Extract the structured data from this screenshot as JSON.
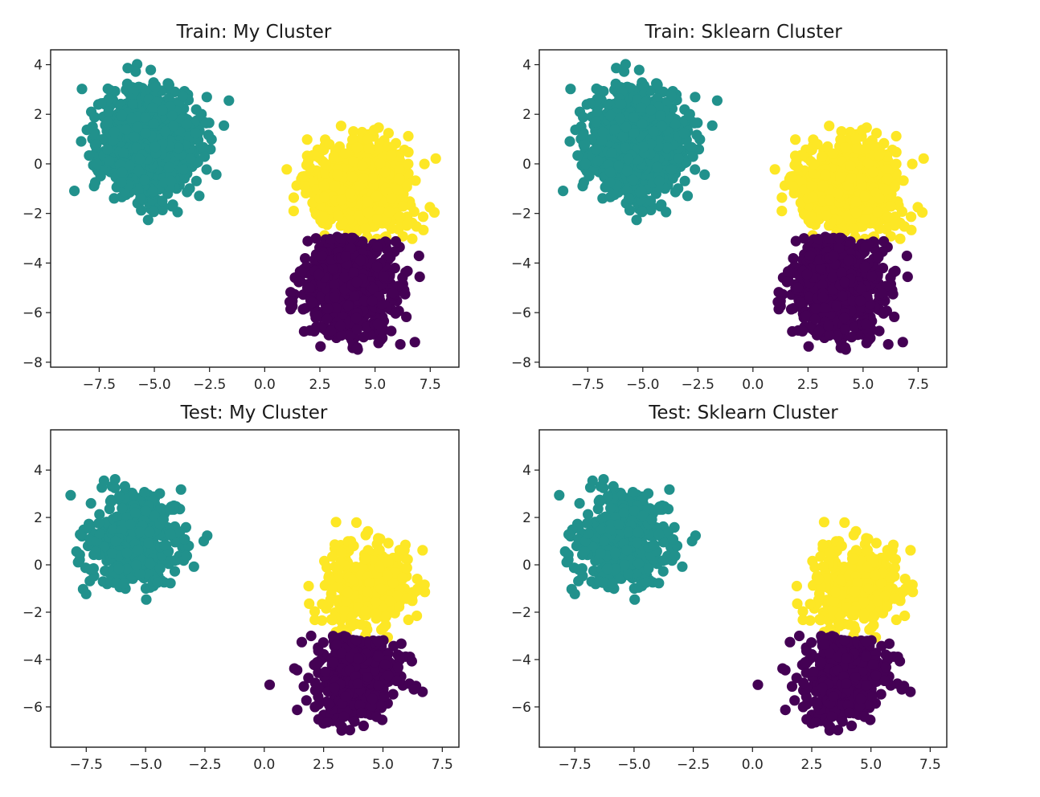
{
  "colors": {
    "cluster_purple": "#440154",
    "cluster_teal": "#21918c",
    "cluster_yellow": "#fde725",
    "axes": "#1a1a1a",
    "background": "#ffffff"
  },
  "chart_data": [
    {
      "type": "scatter",
      "title": "Train: My Cluster",
      "xlim": [
        -9.7,
        8.8
      ],
      "ylim": [
        -8.2,
        4.6
      ],
      "xticks": [
        -7.5,
        -5.0,
        -2.5,
        0.0,
        2.5,
        5.0,
        7.5
      ],
      "xtick_labels": [
        "−7.5",
        "−5.0",
        "−2.5",
        "0.0",
        "2.5",
        "5.0",
        "7.5"
      ],
      "yticks": [
        -8,
        -6,
        -4,
        -2,
        0,
        2,
        4
      ],
      "ytick_labels": [
        "−8",
        "−6",
        "−4",
        "−2",
        "0",
        "2",
        "4"
      ],
      "grid": false,
      "clusters": [
        {
          "color": "teal",
          "center": [
            -5.2,
            0.85
          ],
          "spread": [
            1.05,
            1.05
          ],
          "count": 1150,
          "region": {
            "x": [
              -9.2,
              -1.6
            ],
            "y": [
              -2.6,
              4.2
            ]
          }
        },
        {
          "color": "yellow",
          "center": [
            4.3,
            -0.9
          ],
          "spread": [
            1.1,
            0.95
          ],
          "count": 850,
          "region": {
            "x": [
              0.9,
              8.1
            ],
            "y": [
              -3.2,
              2.6
            ]
          }
        },
        {
          "color": "purple",
          "center": [
            3.9,
            -4.8
          ],
          "spread": [
            1.05,
            1.05
          ],
          "count": 950,
          "region": {
            "x": [
              0.7,
              7.2
            ],
            "y": [
              -7.6,
              -2.6
            ]
          }
        }
      ],
      "boundary": {
        "x": [
          1.5,
          7.0
        ],
        "y": [
          -2.8,
          -3.2
        ]
      }
    },
    {
      "type": "scatter",
      "title": "Train: Sklearn Cluster",
      "xlim": [
        -9.7,
        8.8
      ],
      "ylim": [
        -8.2,
        4.6
      ],
      "xticks": [
        -7.5,
        -5.0,
        -2.5,
        0.0,
        2.5,
        5.0,
        7.5
      ],
      "xtick_labels": [
        "−7.5",
        "−5.0",
        "−2.5",
        "0.0",
        "2.5",
        "5.0",
        "7.5"
      ],
      "yticks": [
        -8,
        -6,
        -4,
        -2,
        0,
        2,
        4
      ],
      "ytick_labels": [
        "−8",
        "−6",
        "−4",
        "−2",
        "0",
        "2",
        "4"
      ],
      "grid": false,
      "clusters": [
        {
          "color": "teal",
          "center": [
            -5.2,
            0.85
          ],
          "spread": [
            1.05,
            1.05
          ],
          "count": 1150,
          "region": {
            "x": [
              -9.2,
              -1.6
            ],
            "y": [
              -2.6,
              4.2
            ]
          }
        },
        {
          "color": "yellow",
          "center": [
            4.3,
            -0.9
          ],
          "spread": [
            1.1,
            0.95
          ],
          "count": 850,
          "region": {
            "x": [
              0.9,
              8.1
            ],
            "y": [
              -3.2,
              2.6
            ]
          }
        },
        {
          "color": "purple",
          "center": [
            3.9,
            -4.8
          ],
          "spread": [
            1.05,
            1.05
          ],
          "count": 950,
          "region": {
            "x": [
              0.7,
              7.2
            ],
            "y": [
              -7.6,
              -2.6
            ]
          }
        }
      ],
      "boundary": {
        "x": [
          1.5,
          7.0
        ],
        "y": [
          -2.8,
          -3.2
        ]
      }
    },
    {
      "type": "scatter",
      "title": "Test: My Cluster",
      "xlim": [
        -9.0,
        8.2
      ],
      "ylim": [
        -7.7,
        5.7
      ],
      "xticks": [
        -7.5,
        -5.0,
        -2.5,
        0.0,
        2.5,
        5.0,
        7.5
      ],
      "xtick_labels": [
        "−7.5",
        "−5.0",
        "−2.5",
        "0.0",
        "2.5",
        "5.0",
        "7.5"
      ],
      "yticks": [
        -6,
        -4,
        -2,
        0,
        2,
        4
      ],
      "ytick_labels": [
        "−6",
        "−4",
        "−2",
        "0",
        "2",
        "4"
      ],
      "grid": false,
      "clusters": [
        {
          "color": "teal",
          "center": [
            -5.6,
            1.1
          ],
          "spread": [
            1.0,
            1.0
          ],
          "count": 500,
          "region": {
            "x": [
              -8.4,
              -2.3
            ],
            "y": [
              -2.7,
              5.2
            ]
          }
        },
        {
          "color": "yellow",
          "center": [
            4.4,
            -0.9
          ],
          "spread": [
            0.95,
            0.95
          ],
          "count": 400,
          "region": {
            "x": [
              1.0,
              7.4
            ],
            "y": [
              -3.3,
              1.9
            ]
          }
        },
        {
          "color": "purple",
          "center": [
            3.9,
            -4.6
          ],
          "spread": [
            1.0,
            1.0
          ],
          "count": 420,
          "region": {
            "x": [
              0.0,
              6.8
            ],
            "y": [
              -7.2,
              -2.8
            ]
          }
        }
      ],
      "boundary": {
        "x": [
          1.5,
          7.0
        ],
        "y": [
          -2.9,
          -3.2
        ]
      }
    },
    {
      "type": "scatter",
      "title": "Test: Sklearn Cluster",
      "xlim": [
        -9.0,
        8.2
      ],
      "ylim": [
        -7.7,
        5.7
      ],
      "xticks": [
        -7.5,
        -5.0,
        -2.5,
        0.0,
        2.5,
        5.0,
        7.5
      ],
      "xtick_labels": [
        "−7.5",
        "−5.0",
        "−2.5",
        "0.0",
        "2.5",
        "5.0",
        "7.5"
      ],
      "yticks": [
        -6,
        -4,
        -2,
        0,
        2,
        4
      ],
      "ytick_labels": [
        "−6",
        "−4",
        "−2",
        "0",
        "2",
        "4"
      ],
      "grid": false,
      "clusters": [
        {
          "color": "teal",
          "center": [
            -5.6,
            1.1
          ],
          "spread": [
            1.0,
            1.0
          ],
          "count": 500,
          "region": {
            "x": [
              -8.4,
              -2.3
            ],
            "y": [
              -2.7,
              5.2
            ]
          }
        },
        {
          "color": "yellow",
          "center": [
            4.4,
            -0.9
          ],
          "spread": [
            0.95,
            0.95
          ],
          "count": 400,
          "region": {
            "x": [
              1.0,
              7.4
            ],
            "y": [
              -3.3,
              1.9
            ]
          }
        },
        {
          "color": "purple",
          "center": [
            3.9,
            -4.6
          ],
          "spread": [
            1.0,
            1.0
          ],
          "count": 420,
          "region": {
            "x": [
              0.0,
              6.8
            ],
            "y": [
              -7.2,
              -2.8
            ]
          }
        }
      ],
      "boundary": {
        "x": [
          1.5,
          7.0
        ],
        "y": [
          -2.9,
          -3.2
        ]
      }
    }
  ]
}
